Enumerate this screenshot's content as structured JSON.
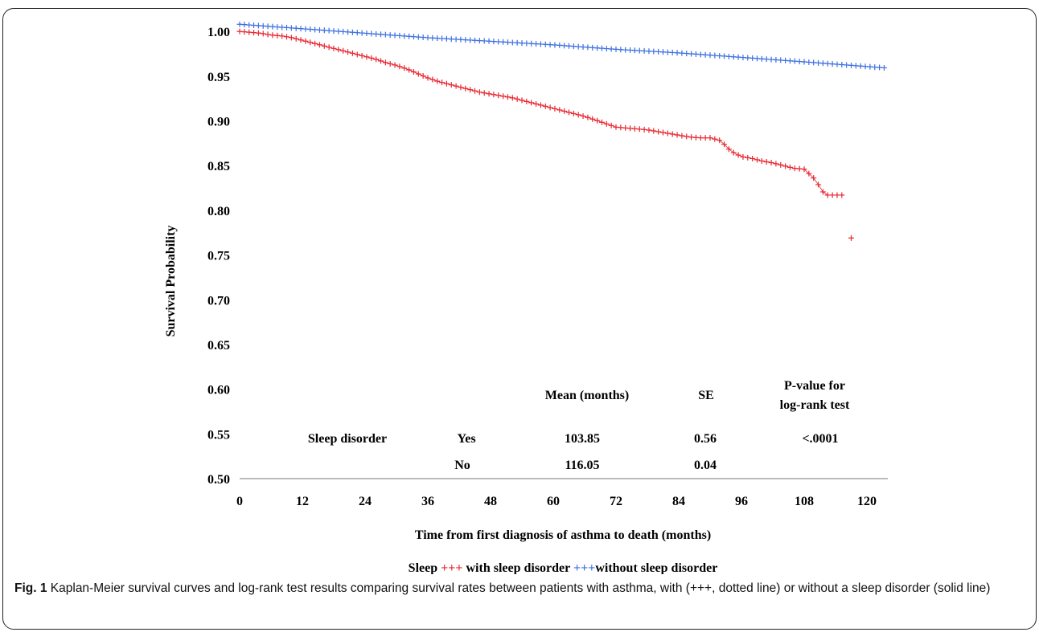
{
  "chart_data": {
    "type": "line",
    "title": "",
    "xlabel": "Time from first diagnosis of asthma to death (months)",
    "ylabel": "Survival Probability",
    "xlim": [
      0,
      124
    ],
    "ylim": [
      0.5,
      1.01
    ],
    "xticks": [
      "0",
      "12",
      "24",
      "36",
      "48",
      "60",
      "72",
      "84",
      "96",
      "108",
      "120"
    ],
    "yticks": [
      "1.00",
      "0.95",
      "0.90",
      "0.85",
      "0.80",
      "0.75",
      "0.70",
      "0.65",
      "0.60",
      "0.55",
      "0.50"
    ],
    "series": [
      {
        "name": "with sleep disorder",
        "color": "#e8262f",
        "marker": "+",
        "points": [
          [
            0,
            1.0
          ],
          [
            2,
            0.999
          ],
          [
            4,
            0.998
          ],
          [
            6,
            0.996
          ],
          [
            8,
            0.995
          ],
          [
            10,
            0.993
          ],
          [
            12,
            0.99
          ],
          [
            14,
            0.987
          ],
          [
            16,
            0.984
          ],
          [
            18,
            0.981
          ],
          [
            20,
            0.978
          ],
          [
            22,
            0.975
          ],
          [
            24,
            0.972
          ],
          [
            26,
            0.969
          ],
          [
            28,
            0.965
          ],
          [
            30,
            0.962
          ],
          [
            32,
            0.958
          ],
          [
            34,
            0.953
          ],
          [
            36,
            0.948
          ],
          [
            38,
            0.944
          ],
          [
            40,
            0.941
          ],
          [
            42,
            0.938
          ],
          [
            44,
            0.935
          ],
          [
            46,
            0.932
          ],
          [
            48,
            0.93
          ],
          [
            50,
            0.928
          ],
          [
            52,
            0.926
          ],
          [
            54,
            0.923
          ],
          [
            56,
            0.92
          ],
          [
            58,
            0.917
          ],
          [
            60,
            0.914
          ],
          [
            62,
            0.911
          ],
          [
            64,
            0.908
          ],
          [
            66,
            0.905
          ],
          [
            68,
            0.901
          ],
          [
            70,
            0.897
          ],
          [
            72,
            0.893
          ],
          [
            74,
            0.892
          ],
          [
            76,
            0.891
          ],
          [
            78,
            0.89
          ],
          [
            80,
            0.888
          ],
          [
            82,
            0.886
          ],
          [
            84,
            0.884
          ],
          [
            86,
            0.882
          ],
          [
            88,
            0.881
          ],
          [
            90,
            0.881
          ],
          [
            92,
            0.878
          ],
          [
            94,
            0.866
          ],
          [
            96,
            0.86
          ],
          [
            98,
            0.858
          ],
          [
            100,
            0.855
          ],
          [
            102,
            0.853
          ],
          [
            104,
            0.85
          ],
          [
            106,
            0.847
          ],
          [
            108,
            0.846
          ],
          [
            110,
            0.835
          ],
          [
            112,
            0.817
          ],
          [
            114,
            0.817
          ],
          [
            116,
            0.817
          ],
          [
            117,
            0.769
          ]
        ]
      },
      {
        "name": "without sleep disorder",
        "color": "#3c6fe0",
        "marker": "+",
        "points": [
          [
            0,
            1.008
          ],
          [
            12,
            1.003
          ],
          [
            24,
            0.998
          ],
          [
            36,
            0.993
          ],
          [
            48,
            0.989
          ],
          [
            60,
            0.985
          ],
          [
            72,
            0.98
          ],
          [
            84,
            0.976
          ],
          [
            96,
            0.971
          ],
          [
            108,
            0.966
          ],
          [
            124,
            0.959
          ]
        ]
      }
    ],
    "stats_table": {
      "header_mean": "Mean (months)",
      "header_se": "SE",
      "header_p_line1": "P-value for",
      "header_p_line2": "log-rank test",
      "row_label": "Sleep disorder",
      "rows": [
        {
          "group": "Yes",
          "mean": "103.85",
          "se": "0.56",
          "p": "<.0001"
        },
        {
          "group": "No",
          "mean": "116.05",
          "se": "0.04",
          "p": ""
        }
      ]
    },
    "legend": {
      "prefix": "Sleep ",
      "marker": "+++",
      "with_label": " with sleep disorder ",
      "without_label": "without sleep disorder"
    }
  },
  "caption": {
    "label": "Fig. 1",
    "text": " Kaplan-Meier survival curves and log-rank test results comparing survival rates between patients with asthma, with (+++, dotted line) or without a sleep disorder (solid line)"
  }
}
